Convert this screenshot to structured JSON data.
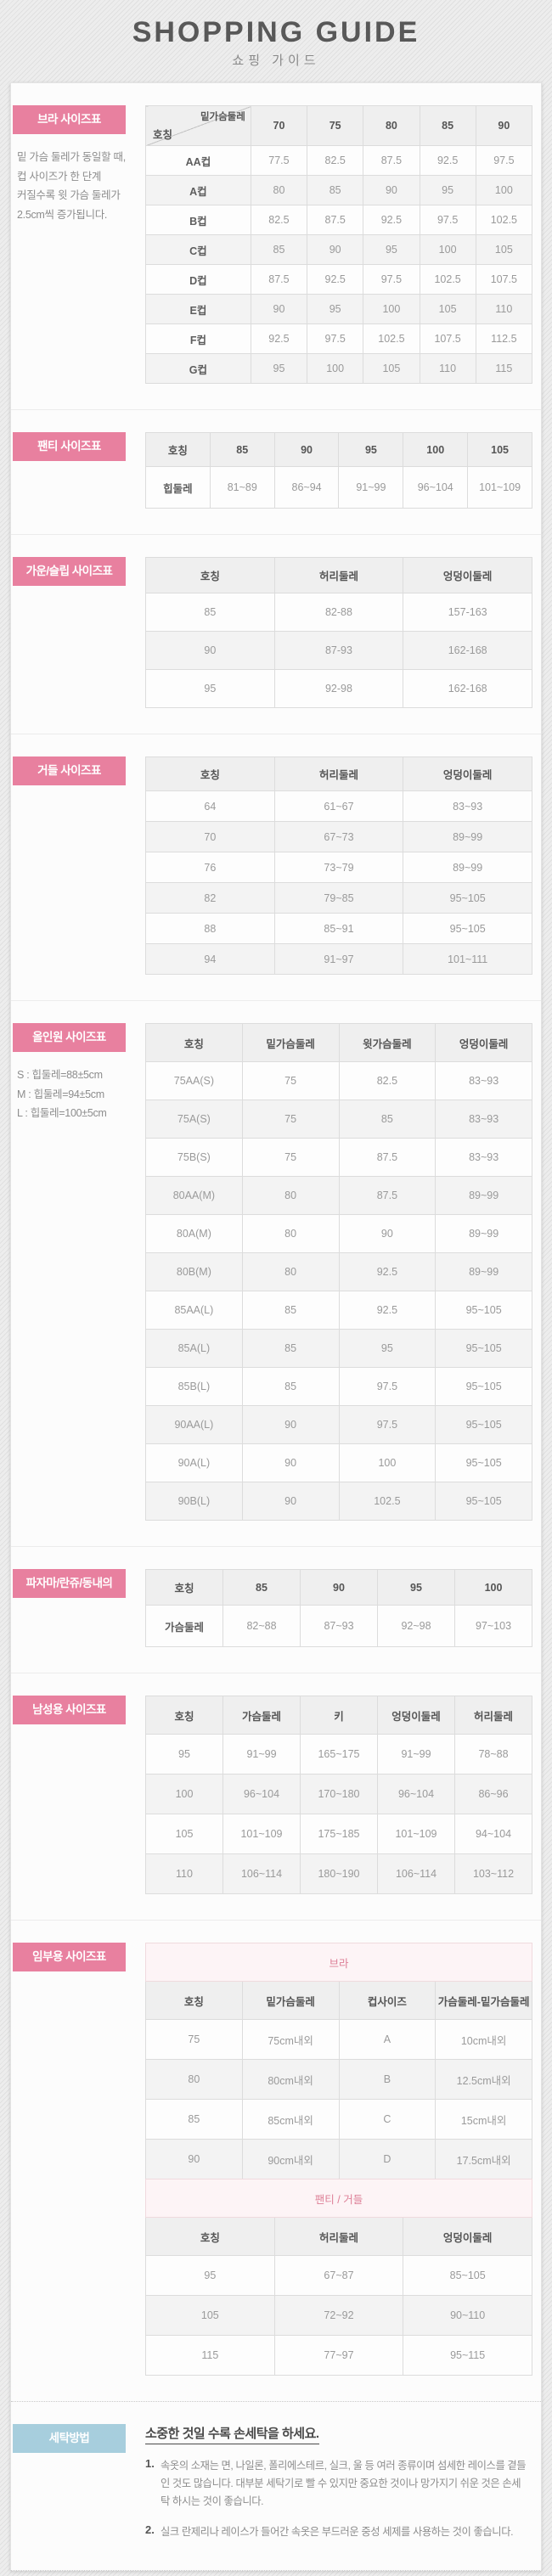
{
  "page": {
    "title": "SHOPPING GUIDE",
    "subtitle": "쇼핑 가이드"
  },
  "colors": {
    "accent_pink": "#e8809f",
    "accent_blue": "#a7cedd",
    "band_pink_bg": "#fdf4f6",
    "band_pink_text": "#dd7f96"
  },
  "sections": [
    {
      "id": "bra",
      "label": "브라 사이즈표",
      "note": [
        "밑 가슴 둘레가 동일할 때,",
        "컵 사이즈가 한 단계",
        "커질수록 윗 가슴 둘레가",
        "2.5cm씩 증가됩니다."
      ],
      "tables": [
        {
          "diagonal": {
            "top": "밑가슴둘레",
            "bottom": "호칭"
          },
          "columns": [
            "70",
            "75",
            "80",
            "85",
            "90"
          ],
          "rows": [
            [
              "AA컵",
              "77.5",
              "82.5",
              "87.5",
              "92.5",
              "97.5"
            ],
            [
              "A컵",
              "80",
              "85",
              "90",
              "95",
              "100"
            ],
            [
              "B컵",
              "82.5",
              "87.5",
              "92.5",
              "97.5",
              "102.5"
            ],
            [
              "C컵",
              "85",
              "90",
              "95",
              "100",
              "105"
            ],
            [
              "D컵",
              "87.5",
              "92.5",
              "97.5",
              "102.5",
              "107.5"
            ],
            [
              "E컵",
              "90",
              "95",
              "100",
              "105",
              "110"
            ],
            [
              "F컵",
              "92.5",
              "97.5",
              "102.5",
              "107.5",
              "112.5"
            ],
            [
              "G컵",
              "95",
              "100",
              "105",
              "110",
              "115"
            ]
          ]
        }
      ]
    },
    {
      "id": "panty",
      "label": "팬티 사이즈표",
      "tables": [
        {
          "columns": [
            "호칭",
            "85",
            "90",
            "95",
            "100",
            "105"
          ],
          "rows": [
            [
              "힙둘레",
              "81~89",
              "86~94",
              "91~99",
              "96~104",
              "101~109"
            ]
          ]
        }
      ]
    },
    {
      "id": "gown",
      "label": "가운/슬립 사이즈표",
      "tables": [
        {
          "columns": [
            "호칭",
            "허리둘레",
            "엉덩이둘레"
          ],
          "rows": [
            [
              "85",
              "82-88",
              "157-163"
            ],
            [
              "90",
              "87-93",
              "162-168"
            ],
            [
              "95",
              "92-98",
              "162-168"
            ]
          ]
        }
      ]
    },
    {
      "id": "girdle",
      "label": "거들 사이즈표",
      "tables": [
        {
          "columns": [
            "호칭",
            "허리둘레",
            "엉덩이둘레"
          ],
          "rows": [
            [
              "64",
              "61~67",
              "83~93"
            ],
            [
              "70",
              "67~73",
              "89~99"
            ],
            [
              "76",
              "73~79",
              "89~99"
            ],
            [
              "82",
              "79~85",
              "95~105"
            ],
            [
              "88",
              "85~91",
              "95~105"
            ],
            [
              "94",
              "91~97",
              "101~111"
            ]
          ]
        }
      ]
    },
    {
      "id": "allinone",
      "label": "올인원 사이즈표",
      "note": [
        "S : 힙둘레=88±5cm",
        "M : 힙둘레=94±5cm",
        "L : 힙둘레=100±5cm"
      ],
      "tables": [
        {
          "columns": [
            "호칭",
            "밑가슴둘레",
            "윗가슴둘레",
            "엉덩이둘레"
          ],
          "rows": [
            [
              "75AA(S)",
              "75",
              "82.5",
              "83~93"
            ],
            [
              "75A(S)",
              "75",
              "85",
              "83~93"
            ],
            [
              "75B(S)",
              "75",
              "87.5",
              "83~93"
            ],
            [
              "80AA(M)",
              "80",
              "87.5",
              "89~99"
            ],
            [
              "80A(M)",
              "80",
              "90",
              "89~99"
            ],
            [
              "80B(M)",
              "80",
              "92.5",
              "89~99"
            ],
            [
              "85AA(L)",
              "85",
              "92.5",
              "95~105"
            ],
            [
              "85A(L)",
              "85",
              "95",
              "95~105"
            ],
            [
              "85B(L)",
              "85",
              "97.5",
              "95~105"
            ],
            [
              "90AA(L)",
              "90",
              "97.5",
              "95~105"
            ],
            [
              "90A(L)",
              "90",
              "100",
              "95~105"
            ],
            [
              "90B(L)",
              "90",
              "102.5",
              "95~105"
            ]
          ]
        }
      ]
    },
    {
      "id": "pajama",
      "label": "파자마/란쥬/동내의",
      "tables": [
        {
          "columns": [
            "호칭",
            "85",
            "90",
            "95",
            "100"
          ],
          "rows": [
            [
              "가슴둘레",
              "82~88",
              "87~93",
              "92~98",
              "97~103"
            ]
          ]
        }
      ]
    },
    {
      "id": "men",
      "label": "남성용 사이즈표",
      "tables": [
        {
          "columns": [
            "호칭",
            "가슴둘레",
            "키",
            "엉덩이둘레",
            "허리둘레"
          ],
          "rows": [
            [
              "95",
              "91~99",
              "165~175",
              "91~99",
              "78~88"
            ],
            [
              "100",
              "96~104",
              "170~180",
              "96~104",
              "86~96"
            ],
            [
              "105",
              "101~109",
              "175~185",
              "101~109",
              "94~104"
            ],
            [
              "110",
              "106~114",
              "180~190",
              "106~114",
              "103~112"
            ]
          ]
        }
      ]
    },
    {
      "id": "maternity",
      "label": "임부용 사이즈표",
      "tables": [
        {
          "band": "브라",
          "columns": [
            "호칭",
            "밑가슴둘레",
            "컵사이즈",
            "가슴둘레-밑가슴둘레"
          ],
          "rows": [
            [
              "75",
              "75cm내외",
              "A",
              "10cm내외"
            ],
            [
              "80",
              "80cm내외",
              "B",
              "12.5cm내외"
            ],
            [
              "85",
              "85cm내외",
              "C",
              "15cm내외"
            ],
            [
              "90",
              "90cm내외",
              "D",
              "17.5cm내외"
            ]
          ]
        },
        {
          "band": "팬티 / 거들",
          "columns": [
            "호칭",
            "허리둘레",
            "엉덩이둘레"
          ],
          "rows": [
            [
              "95",
              "67~87",
              "85~105"
            ],
            [
              "105",
              "72~92",
              "90~110"
            ],
            [
              "115",
              "77~97",
              "95~115"
            ]
          ]
        }
      ]
    }
  ],
  "washing": {
    "label": "세탁방법",
    "title": "소중한 것일 수록 손세탁을 하세요.",
    "items": [
      {
        "num": "1.",
        "text": "속옷의 소재는 면, 나일론, 폴리에스테르, 실크, 울 등 여러 종류이며 섬세한 레이스를 곁들인 것도 많습니다. 대부분 세탁기로 빨 수 있지만 중요한 것이나 망가지기 쉬운 것은 손세탁 하시는 것이 좋습니다."
      },
      {
        "num": "2.",
        "text": "실크 란제리나 레이스가 들어간 속옷은 부드러운 중성 세제를 사용하는 것이 좋습니다."
      }
    ]
  }
}
